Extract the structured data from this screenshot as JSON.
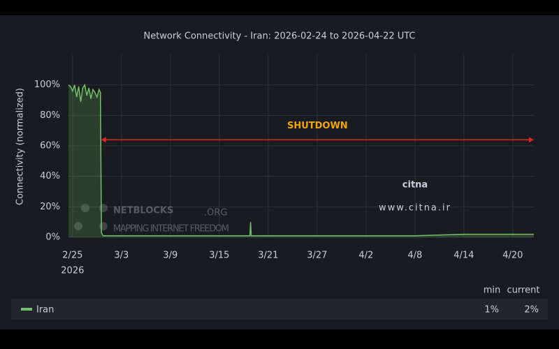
{
  "chart_data": {
    "type": "area",
    "title": "Network Connectivity - Iran: 2026-02-24 to 2026-04-22 UTC",
    "y_label": "Connectivity (normalized)",
    "x": [
      "2026-02-24T12:00",
      "2026-02-24T18:00",
      "2026-02-25T00:00",
      "2026-02-25T06:00",
      "2026-02-25T12:00",
      "2026-02-25T18:00",
      "2026-02-26T00:00",
      "2026-02-26T06:00",
      "2026-02-26T12:00",
      "2026-02-26T18:00",
      "2026-02-27T00:00",
      "2026-02-27T06:00",
      "2026-02-27T12:00",
      "2026-02-27T18:00",
      "2026-02-28T00:00",
      "2026-02-28T06:00",
      "2026-02-28T10:00",
      "2026-02-28T13:00",
      "2026-02-28T18:00",
      "2026-03-03T00:00",
      "2026-03-09T00:00",
      "2026-03-15T00:00",
      "2026-03-18T18:00",
      "2026-03-18T20:00",
      "2026-03-18T22:00",
      "2026-03-27T00:00",
      "2026-04-02T00:00",
      "2026-04-08T00:00",
      "2026-04-14T00:00",
      "2026-04-20T00:00",
      "2026-04-22T14:00"
    ],
    "series": [
      {
        "name": "Iran",
        "color": "#73bf69",
        "values": [
          100,
          99,
          96,
          100,
          92,
          99,
          89,
          98,
          100,
          93,
          98,
          91,
          97,
          95,
          92,
          97,
          95,
          3,
          1,
          1,
          1,
          1,
          1,
          10,
          1,
          1,
          1,
          1,
          2,
          2,
          2
        ],
        "stats": [
          {
            "value": 1,
            "label": "1%"
          },
          {
            "value": 2,
            "label": "2%"
          }
        ]
      }
    ],
    "legend_columns": [
      "min",
      "current"
    ],
    "xlim": [
      "2026-02-24T12:00",
      "2026-04-22T14:00"
    ],
    "xticks": [
      {
        "value": "2026-02-25T00:00",
        "label": "2/25",
        "sublabel": "2026"
      },
      {
        "value": "2026-03-03T00:00",
        "label": "3/3"
      },
      {
        "value": "2026-03-09T00:00",
        "label": "3/9"
      },
      {
        "value": "2026-03-15T00:00",
        "label": "3/15"
      },
      {
        "value": "2026-03-21T00:00",
        "label": "3/21"
      },
      {
        "value": "2026-03-27T00:00",
        "label": "3/27"
      },
      {
        "value": "2026-04-02T00:00",
        "label": "4/2"
      },
      {
        "value": "2026-04-08T00:00",
        "label": "4/8"
      },
      {
        "value": "2026-04-14T00:00",
        "label": "4/14"
      },
      {
        "value": "2026-04-20T00:00",
        "label": "4/20"
      }
    ],
    "ylim": [
      0,
      120
    ],
    "yticks": [
      {
        "value": 0,
        "label": "0%"
      },
      {
        "value": 20,
        "label": "20%"
      },
      {
        "value": 40,
        "label": "40%"
      },
      {
        "value": 60,
        "label": "60%"
      },
      {
        "value": 80,
        "label": "80%"
      },
      {
        "value": 100,
        "label": "100%"
      }
    ],
    "grid": true,
    "annotation": {
      "text": "SHUTDOWN",
      "text_color": "#f2a500",
      "color": "#e02424",
      "x_start": "2026-02-28T12:00",
      "x_end": "2026-04-22T14:00",
      "y": 64
    },
    "watermarks": {
      "netblocks": "NETBLOCKS",
      "netblocks_suffix": ".ORG",
      "netblocks_tagline": "MAPPING INTERNET FREEDOM",
      "citna": "citna",
      "citna_url": "www.citna.ir"
    }
  }
}
